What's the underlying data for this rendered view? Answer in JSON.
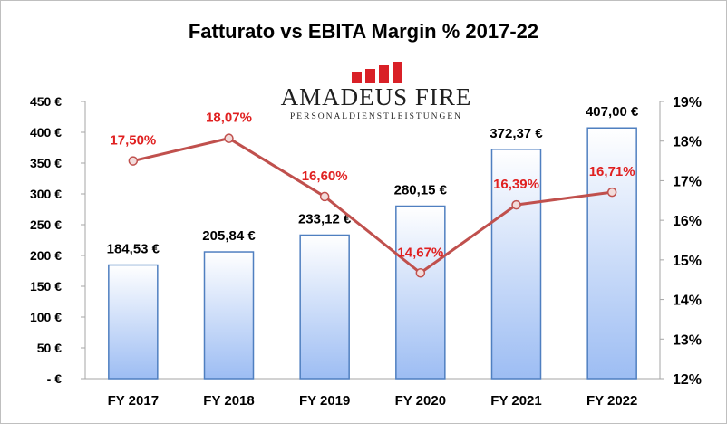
{
  "chart_data": {
    "type": "bar",
    "title": "Fatturato vs EBITA Margin % 2017-22",
    "categories": [
      "FY 2017",
      "FY 2018",
      "FY 2019",
      "FY 2020",
      "FY 2021",
      "FY 2022"
    ],
    "series": [
      {
        "axis": "left",
        "chart_type": "bar",
        "values": [
          184.53,
          205.84,
          233.12,
          280.15,
          372.37,
          407.0
        ],
        "data_labels": [
          "184,53 €",
          "205,84 €",
          "233,12 €",
          "280,15 €",
          "372,37 €",
          "407,00 €"
        ]
      },
      {
        "axis": "right",
        "chart_type": "line",
        "values": [
          17.5,
          18.07,
          16.6,
          14.67,
          16.39,
          16.71
        ],
        "data_labels": [
          "17,50%",
          "18,07%",
          "16,60%",
          "14,67%",
          "16,39%",
          "16,71%"
        ]
      }
    ],
    "y_left": {
      "ylim": [
        0,
        450
      ],
      "ticks": [
        0,
        50,
        100,
        150,
        200,
        250,
        300,
        350,
        400,
        450
      ],
      "tick_labels": [
        "- €",
        "50 €",
        "100 €",
        "150 €",
        "200 €",
        "250 €",
        "300 €",
        "350 €",
        "400 €",
        "450 €"
      ]
    },
    "y_right": {
      "ylim": [
        12,
        19
      ],
      "ticks": [
        12,
        13,
        14,
        15,
        16,
        17,
        18,
        19
      ],
      "tick_labels": [
        "12%",
        "13%",
        "14%",
        "15%",
        "16%",
        "17%",
        "18%",
        "19%"
      ]
    },
    "grid": false,
    "legend": "none",
    "colors": {
      "bar_top": "#ffffff",
      "bar_bottom": "#9dbdf3",
      "bar_border": "#4f7fc0",
      "line": "#c0504d",
      "line_label": "#e02020",
      "marker_fill": "#f2dcdb"
    }
  },
  "logo": {
    "name": "AMADEUS FIRE",
    "tagline": "PERSONALDIENSTLEISTUNGEN",
    "color": "#d92027"
  }
}
